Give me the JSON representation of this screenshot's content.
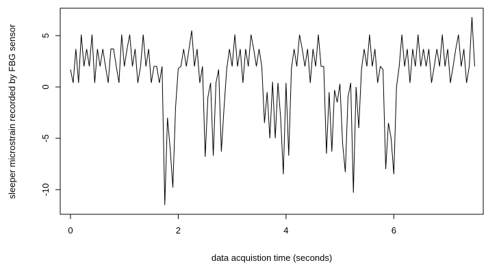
{
  "chart_data": {
    "type": "line",
    "xlabel": "data acquistion time (seconds)",
    "ylabel": "sleeper microstrain recorded by FBG sensor",
    "x": [
      0,
      0.05,
      0.1,
      0.15,
      0.2,
      0.25,
      0.3,
      0.35,
      0.4,
      0.45,
      0.5,
      0.55,
      0.6,
      0.65,
      0.7,
      0.75,
      0.8,
      0.85,
      0.9,
      0.95,
      1,
      1.05,
      1.1,
      1.15,
      1.2,
      1.25,
      1.3,
      1.35,
      1.4,
      1.45,
      1.5,
      1.55,
      1.6,
      1.65,
      1.7,
      1.75,
      1.8,
      1.85,
      1.9,
      1.95,
      2,
      2.05,
      2.1,
      2.15,
      2.2,
      2.25,
      2.3,
      2.35,
      2.4,
      2.45,
      2.5,
      2.55,
      2.6,
      2.65,
      2.7,
      2.75,
      2.8,
      2.85,
      2.9,
      2.95,
      3,
      3.05,
      3.1,
      3.15,
      3.2,
      3.25,
      3.3,
      3.35,
      3.4,
      3.45,
      3.5,
      3.55,
      3.6,
      3.65,
      3.7,
      3.75,
      3.8,
      3.85,
      3.9,
      3.95,
      4,
      4.05,
      4.1,
      4.15,
      4.2,
      4.25,
      4.3,
      4.35,
      4.4,
      4.45,
      4.5,
      4.55,
      4.6,
      4.65,
      4.7,
      4.75,
      4.8,
      4.85,
      4.9,
      4.95,
      5,
      5.05,
      5.1,
      5.15,
      5.2,
      5.25,
      5.3,
      5.35,
      5.4,
      5.45,
      5.5,
      5.55,
      5.6,
      5.65,
      5.7,
      5.75,
      5.8,
      5.85,
      5.9,
      5.95,
      6,
      6.05,
      6.1,
      6.15,
      6.2,
      6.25,
      6.3,
      6.35,
      6.4,
      6.45,
      6.5,
      6.55,
      6.6,
      6.65,
      6.7,
      6.75,
      6.8,
      6.85,
      6.9,
      6.95,
      7,
      7.05,
      7.1,
      7.15,
      7.2,
      7.25,
      7.3,
      7.35,
      7.4,
      7.45,
      7.5
    ],
    "series": [
      {
        "color": "#000000",
        "values": [
          1.7,
          0.4,
          3.7,
          0.4,
          5.1,
          2,
          3.7,
          2,
          5.1,
          0.4,
          3.7,
          2,
          3.7,
          2,
          0.4,
          3.7,
          3.7,
          2,
          0.4,
          5.1,
          2,
          3.7,
          5.1,
          2,
          3.7,
          0.4,
          2,
          5.1,
          2,
          3.7,
          0.4,
          2,
          2,
          0.4,
          2,
          -11.5,
          -3,
          -6,
          -9.8,
          -2,
          1.8,
          2,
          3.7,
          2,
          3.7,
          5.5,
          2,
          3.7,
          0.4,
          2,
          -6.8,
          -1,
          0.4,
          -6.7,
          0.4,
          1.7,
          -6.3,
          -2,
          1.8,
          3.7,
          2,
          5.1,
          2,
          3.7,
          0.4,
          3.7,
          2,
          5.1,
          3.7,
          2,
          3.7,
          2,
          -3.5,
          -0.5,
          -5,
          0.5,
          -5,
          0.4,
          -3,
          -8.5,
          0.4,
          -6.7,
          1.8,
          3.7,
          2,
          5.1,
          3.7,
          2,
          3.7,
          0.4,
          3.7,
          2,
          5.1,
          2,
          2,
          -6.5,
          -0.5,
          -6.3,
          -0.3,
          -1.5,
          0.3,
          -5.5,
          -8.3,
          -1,
          0.4,
          -10.3,
          0,
          -4,
          1.7,
          3.7,
          2,
          5.1,
          2,
          3.7,
          0.4,
          2,
          1.7,
          -8,
          -3.5,
          -5,
          -8.5,
          0,
          2,
          5.1,
          2,
          3.7,
          0.4,
          3.7,
          2,
          5.1,
          2,
          3.7,
          2,
          3.7,
          0.4,
          2,
          3.7,
          2,
          5.1,
          2,
          3.7,
          0.4,
          2,
          3.7,
          5.1,
          2,
          3.7,
          0.4,
          2,
          6.8,
          2
        ]
      }
    ],
    "xlim": [
      -0.19,
      7.66
    ],
    "xticks": [
      0,
      2,
      4,
      6
    ],
    "ylim": [
      -12.4,
      7.67
    ],
    "yticks": [
      -10,
      -5,
      0,
      5
    ]
  }
}
